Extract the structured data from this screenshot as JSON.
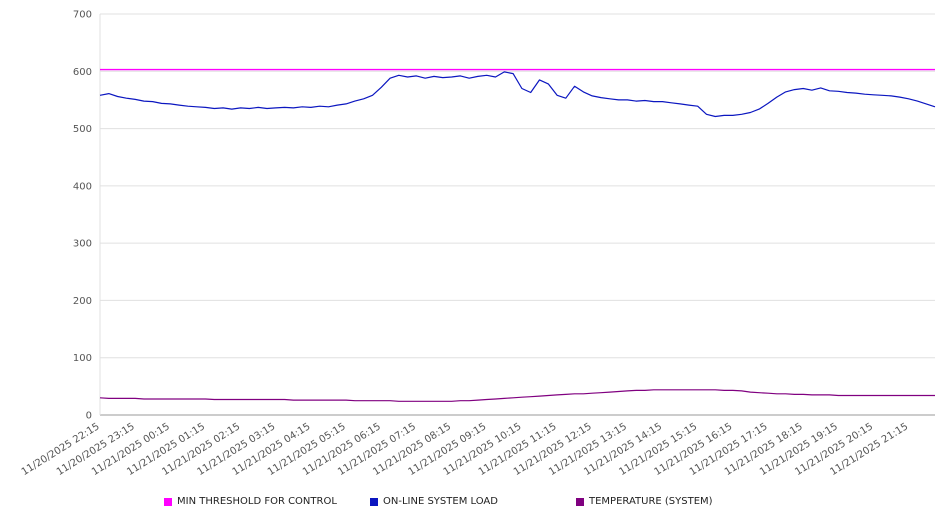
{
  "chart_data": {
    "type": "line",
    "title": "",
    "xlabel": "",
    "ylabel": "",
    "ylim": [
      0,
      700
    ],
    "yticks": [
      0,
      100,
      200,
      300,
      400,
      500,
      600,
      700
    ],
    "grid": true,
    "legend_position": "bottom",
    "points_per_label": 4,
    "x_labels": [
      "11/20/2025 22:15",
      "11/20/2025 23:15",
      "11/21/2025 00:15",
      "11/21/2025 01:15",
      "11/21/2025 02:15",
      "11/21/2025 03:15",
      "11/21/2025 04:15",
      "11/21/2025 05:15",
      "11/21/2025 06:15",
      "11/21/2025 07:15",
      "11/21/2025 08:15",
      "11/21/2025 09:15",
      "11/21/2025 10:15",
      "11/21/2025 11:15",
      "11/21/2025 12:15",
      "11/21/2025 13:15",
      "11/21/2025 14:15",
      "11/21/2025 15:15",
      "11/21/2025 16:15",
      "11/21/2025 17:15",
      "11/21/2025 18:15",
      "11/21/2025 19:15",
      "11/21/2025 20:15",
      "11/21/2025 21:15"
    ],
    "series": [
      {
        "name": "MIN THRESHOLD FOR CONTROL",
        "color": "#ff00ff",
        "values": [
          603
        ]
      },
      {
        "name": "ON-LINE SYSTEM LOAD",
        "color": "#0b16c0",
        "values": [
          558,
          561,
          556,
          553,
          551,
          548,
          547,
          544,
          543,
          541,
          539,
          538,
          537,
          535,
          536,
          534,
          536,
          535,
          537,
          535,
          536,
          537,
          536,
          538,
          537,
          539,
          538,
          541,
          543,
          548,
          552,
          558,
          572,
          588,
          593,
          590,
          592,
          588,
          591,
          589,
          590,
          592,
          588,
          591,
          593,
          590,
          599,
          596,
          570,
          563,
          585,
          578,
          558,
          553,
          574,
          564,
          557,
          554,
          552,
          550,
          550,
          548,
          549,
          547,
          547,
          545,
          543,
          541,
          539,
          525,
          521,
          523,
          523,
          525,
          528,
          534,
          544,
          555,
          564,
          568,
          570,
          567,
          571,
          566,
          565,
          563,
          562,
          560,
          559,
          558,
          557,
          555,
          552,
          548,
          543,
          538
        ]
      },
      {
        "name": "TEMPERATURE (SYSTEM)",
        "color": "#800080",
        "values": [
          30,
          29,
          29,
          29,
          29,
          28,
          28,
          28,
          28,
          28,
          28,
          28,
          28,
          27,
          27,
          27,
          27,
          27,
          27,
          27,
          27,
          27,
          26,
          26,
          26,
          26,
          26,
          26,
          26,
          25,
          25,
          25,
          25,
          25,
          24,
          24,
          24,
          24,
          24,
          24,
          24,
          25,
          25,
          26,
          27,
          28,
          29,
          30,
          31,
          32,
          33,
          34,
          35,
          36,
          37,
          37,
          38,
          39,
          40,
          41,
          42,
          43,
          43,
          44,
          44,
          44,
          44,
          44,
          44,
          44,
          44,
          43,
          43,
          42,
          40,
          39,
          38,
          37,
          37,
          36,
          36,
          35,
          35,
          35,
          34,
          34,
          34,
          34,
          34,
          34,
          34,
          34,
          34,
          34,
          34,
          34
        ]
      }
    ],
    "colors": {
      "grid": "#e0e0e0",
      "axis": "#999999",
      "tick_text": "#555555"
    }
  }
}
